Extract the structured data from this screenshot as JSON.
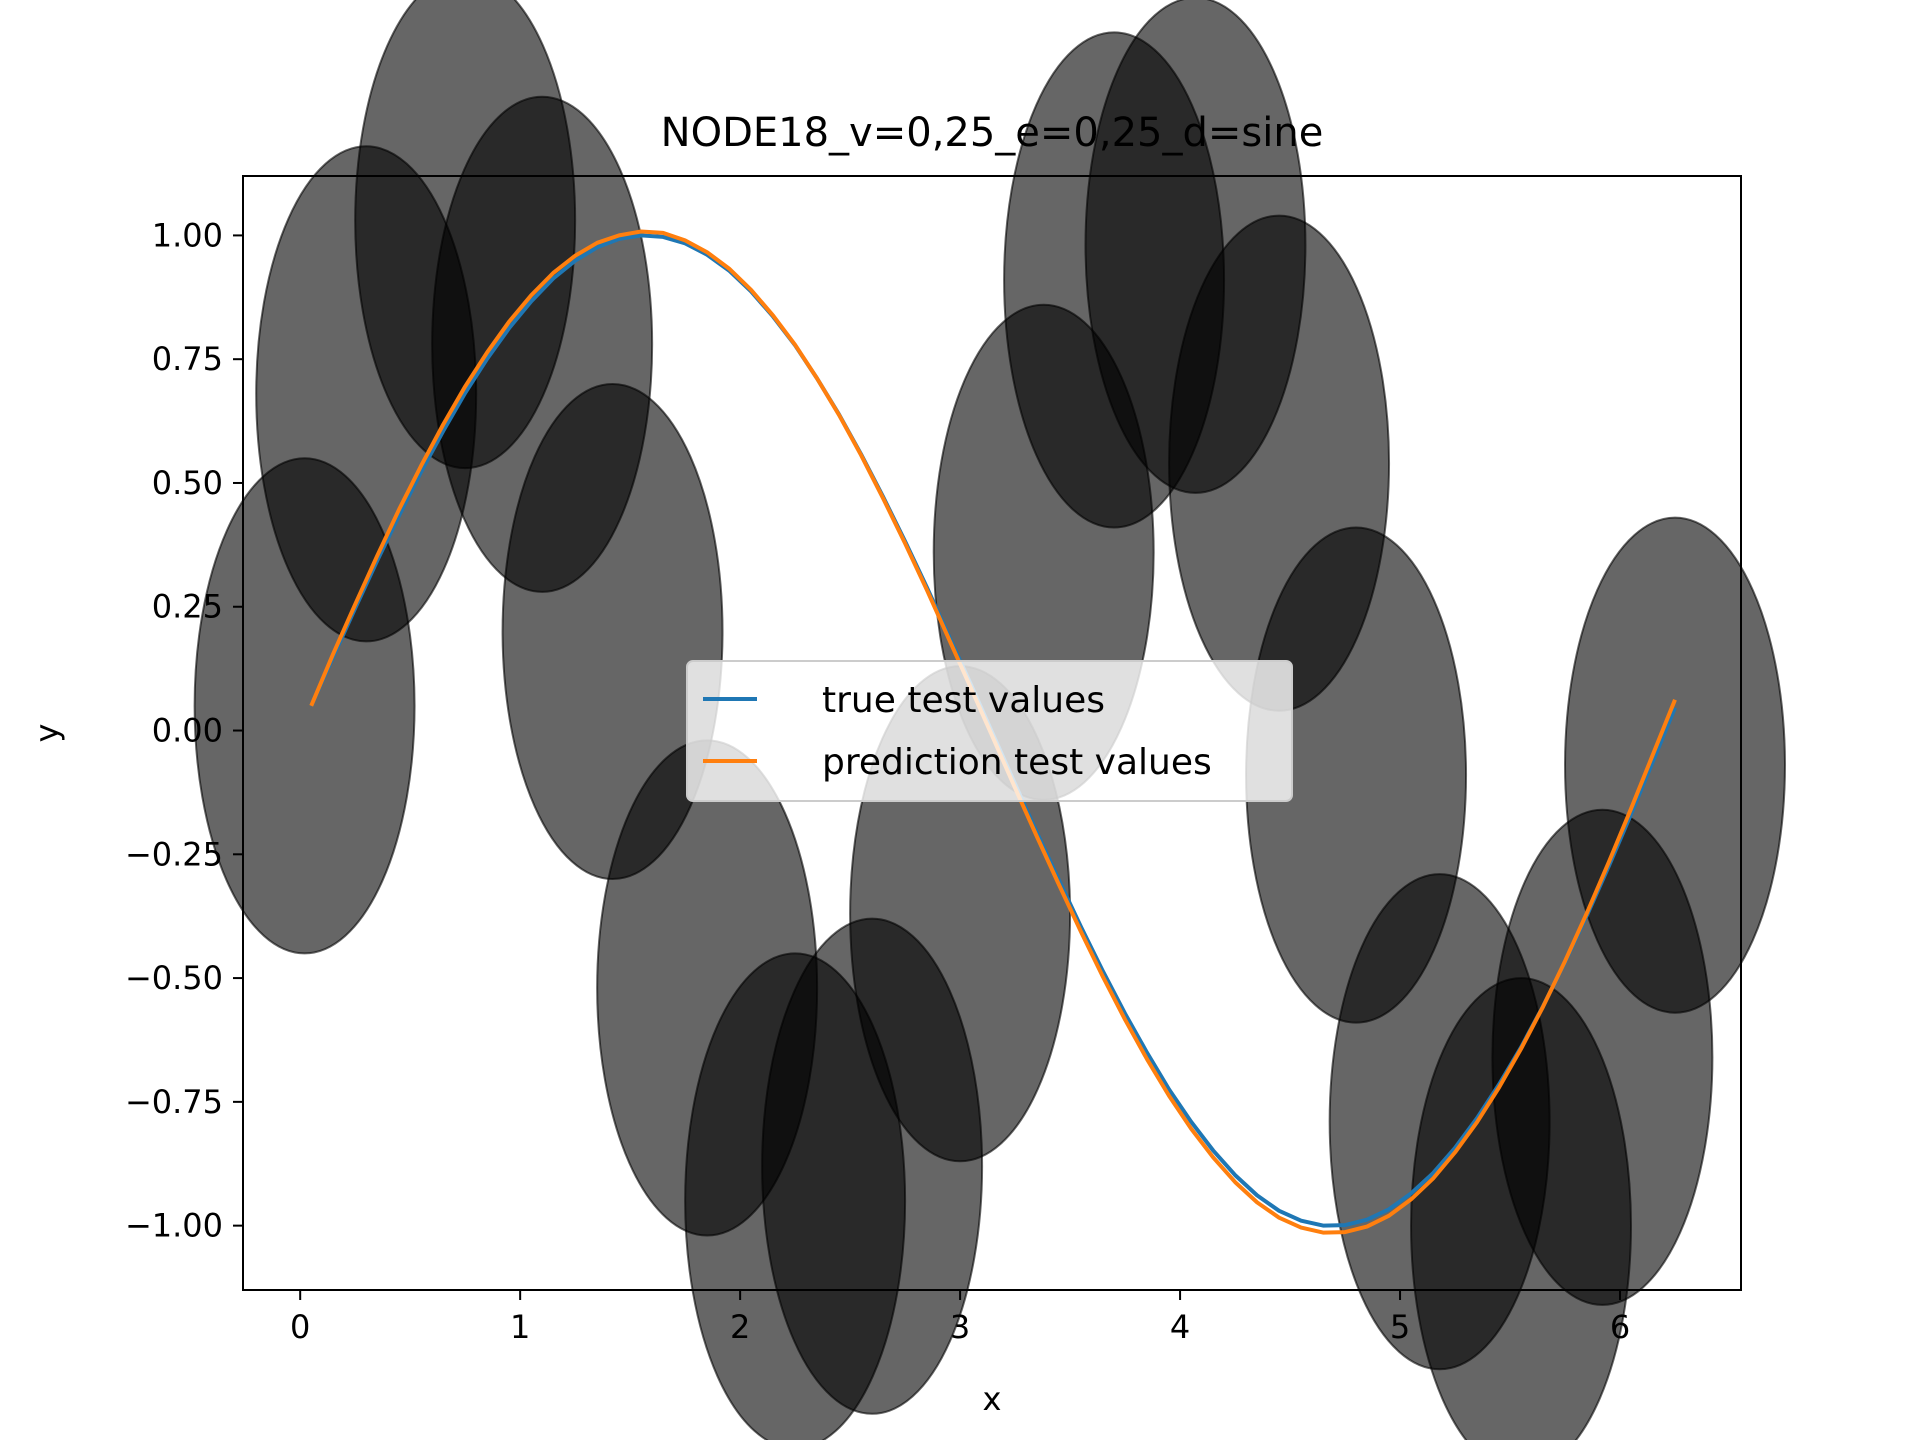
{
  "chart_data": {
    "type": "line",
    "title": "NODE18_v=0,25_e=0,25_d=sine",
    "xlabel": "x",
    "ylabel": "y",
    "xlim": [
      -0.26,
      6.55
    ],
    "ylim": [
      -1.13,
      1.12
    ],
    "xticks": [
      0,
      1,
      2,
      3,
      4,
      5,
      6
    ],
    "xtick_labels": [
      "0",
      "1",
      "2",
      "3",
      "4",
      "5",
      "6"
    ],
    "yticks": [
      1.0,
      0.75,
      0.5,
      0.25,
      0.0,
      -0.25,
      -0.5,
      -0.75,
      -1.0
    ],
    "ytick_labels": [
      "1.00",
      "0.75",
      "0.50",
      "0.25",
      "0.00",
      "−0.25",
      "−0.50",
      "−0.75",
      "−1.00"
    ],
    "grid": false,
    "legend": {
      "placement": "center",
      "entries": [
        {
          "label": "true test values",
          "color": "#1f77b4"
        },
        {
          "label": "prediction test values",
          "color": "#ff7f0e"
        }
      ]
    },
    "series": [
      {
        "name": "true test values",
        "color": "#1f77b4",
        "x": [
          0.05,
          0.15,
          0.25,
          0.35,
          0.45,
          0.55,
          0.65,
          0.75,
          0.85,
          0.95,
          1.05,
          1.15,
          1.25,
          1.35,
          1.45,
          1.55,
          1.65,
          1.75,
          1.85,
          1.95,
          2.05,
          2.15,
          2.25,
          2.35,
          2.45,
          2.55,
          2.65,
          2.75,
          2.85,
          2.95,
          3.05,
          3.15,
          3.25,
          3.35,
          3.45,
          3.55,
          3.65,
          3.75,
          3.85,
          3.95,
          4.05,
          4.15,
          4.25,
          4.35,
          4.45,
          4.55,
          4.65,
          4.75,
          4.85,
          4.95,
          5.05,
          5.15,
          5.25,
          5.35,
          5.45,
          5.55,
          5.65,
          5.75,
          5.85,
          5.95,
          6.05,
          6.15,
          6.25
        ],
        "y": [
          0.05,
          0.149,
          0.247,
          0.343,
          0.435,
          0.523,
          0.605,
          0.682,
          0.751,
          0.813,
          0.867,
          0.913,
          0.949,
          0.976,
          0.993,
          1.0,
          0.997,
          0.984,
          0.961,
          0.929,
          0.887,
          0.836,
          0.778,
          0.711,
          0.638,
          0.558,
          0.472,
          0.382,
          0.288,
          0.19,
          0.092,
          -0.008,
          -0.108,
          -0.207,
          -0.303,
          -0.397,
          -0.487,
          -0.572,
          -0.651,
          -0.725,
          -0.79,
          -0.848,
          -0.898,
          -0.939,
          -0.97,
          -0.99,
          -1.0,
          -0.999,
          -0.988,
          -0.967,
          -0.935,
          -0.894,
          -0.843,
          -0.783,
          -0.715,
          -0.64,
          -0.557,
          -0.468,
          -0.373,
          -0.273,
          -0.169,
          -0.062,
          0.046
        ]
      },
      {
        "name": "prediction test values",
        "color": "#ff7f0e",
        "x": [
          0.05,
          0.15,
          0.25,
          0.35,
          0.45,
          0.55,
          0.65,
          0.75,
          0.85,
          0.95,
          1.05,
          1.15,
          1.25,
          1.35,
          1.45,
          1.55,
          1.65,
          1.75,
          1.85,
          1.95,
          2.05,
          2.15,
          2.25,
          2.35,
          2.45,
          2.55,
          2.65,
          2.75,
          2.85,
          2.95,
          3.05,
          3.15,
          3.25,
          3.35,
          3.45,
          3.55,
          3.65,
          3.75,
          3.85,
          3.95,
          4.05,
          4.15,
          4.25,
          4.35,
          4.45,
          4.55,
          4.65,
          4.75,
          4.85,
          4.95,
          5.05,
          5.15,
          5.25,
          5.35,
          5.45,
          5.55,
          5.65,
          5.75,
          5.85,
          5.95,
          6.05,
          6.15,
          6.25
        ],
        "y": [
          0.05,
          0.155,
          0.255,
          0.353,
          0.447,
          0.535,
          0.618,
          0.695,
          0.764,
          0.826,
          0.879,
          0.924,
          0.959,
          0.985,
          1.0,
          1.008,
          1.005,
          0.99,
          0.966,
          0.933,
          0.89,
          0.838,
          0.779,
          0.711,
          0.637,
          0.556,
          0.469,
          0.378,
          0.283,
          0.184,
          0.085,
          -0.015,
          -0.116,
          -0.215,
          -0.312,
          -0.407,
          -0.498,
          -0.584,
          -0.664,
          -0.738,
          -0.804,
          -0.862,
          -0.912,
          -0.953,
          -0.984,
          -1.004,
          -1.014,
          -1.013,
          -1.002,
          -0.98,
          -0.947,
          -0.905,
          -0.852,
          -0.791,
          -0.721,
          -0.643,
          -0.558,
          -0.466,
          -0.368,
          -0.265,
          -0.158,
          -0.048,
          0.062
        ]
      }
    ],
    "ellipses": {
      "fill": "#000000",
      "opacity": 0.6,
      "width": 1.0,
      "height": 1.0,
      "centers": [
        [
          0.3,
          0.68
        ],
        [
          0.75,
          1.03
        ],
        [
          1.1,
          0.78
        ],
        [
          1.42,
          0.2
        ],
        [
          1.85,
          -0.52
        ],
        [
          2.25,
          -0.95
        ],
        [
          2.6,
          -0.88
        ],
        [
          3.0,
          -0.37
        ],
        [
          3.38,
          0.36
        ],
        [
          3.7,
          0.91
        ],
        [
          4.07,
          0.98
        ],
        [
          4.45,
          0.54
        ],
        [
          4.8,
          -0.09
        ],
        [
          5.18,
          -0.79
        ],
        [
          5.55,
          -1.0
        ],
        [
          5.92,
          -0.66
        ],
        [
          6.25,
          -0.07
        ],
        [
          0.02,
          0.05
        ]
      ]
    }
  }
}
